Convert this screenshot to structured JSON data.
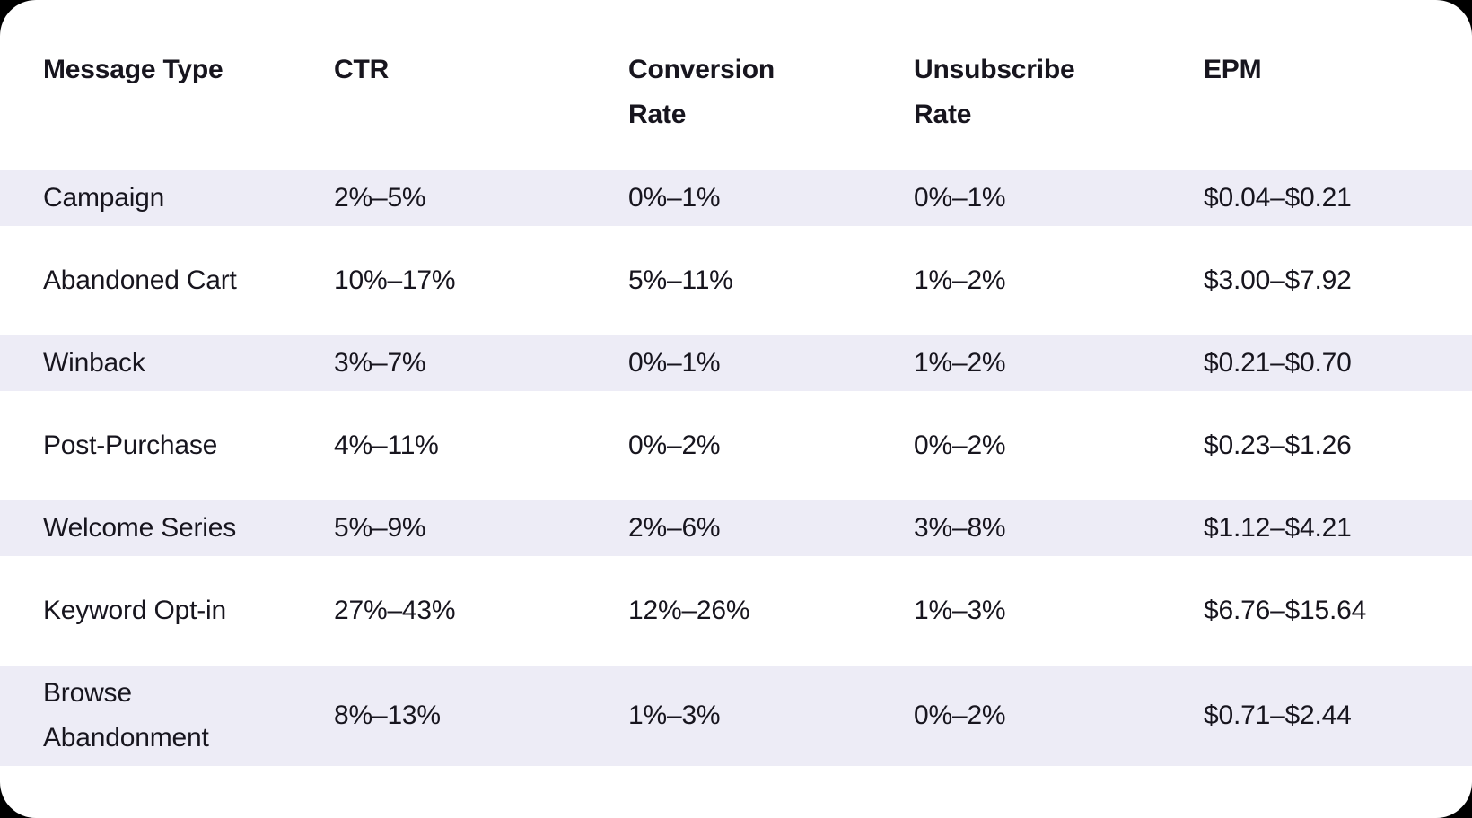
{
  "chart_data": {
    "type": "table",
    "columns": [
      "Message Type",
      "CTR",
      "Conversion Rate",
      "Unsubscribe Rate",
      "EPM"
    ],
    "rows": [
      [
        "Campaign",
        "2%–5%",
        "0%–1%",
        "0%–1%",
        "$0.04–$0.21"
      ],
      [
        "Abandoned Cart",
        "10%–17%",
        "5%–11%",
        "1%–2%",
        "$3.00–$7.92"
      ],
      [
        "Winback",
        "3%–7%",
        "0%–1%",
        "1%–2%",
        "$0.21–$0.70"
      ],
      [
        "Post-Purchase",
        "4%–11%",
        "0%–2%",
        "0%–2%",
        "$0.23–$1.26"
      ],
      [
        "Welcome Series",
        "5%–9%",
        "2%–6%",
        "3%–8%",
        "$1.12–$4.21"
      ],
      [
        "Keyword Opt-in",
        "27%–43%",
        "12%–26%",
        "1%–3%",
        "$6.76–$15.64"
      ],
      [
        "Browse Abandonment",
        "8%–13%",
        "1%–3%",
        "0%–2%",
        "$0.71–$2.44"
      ]
    ]
  },
  "header": {
    "cells": [
      {
        "lines": [
          "Message Type",
          ""
        ]
      },
      {
        "lines": [
          "CTR",
          ""
        ]
      },
      {
        "lines": [
          "Conversion",
          "Rate"
        ]
      },
      {
        "lines": [
          "Unsubscribe",
          "Rate"
        ]
      },
      {
        "lines": [
          "EPM",
          ""
        ]
      }
    ]
  },
  "colors": {
    "page_background": "#000000",
    "card_background": "#ffffff",
    "row_stripe": "#edecf6",
    "text": "#17151e"
  }
}
